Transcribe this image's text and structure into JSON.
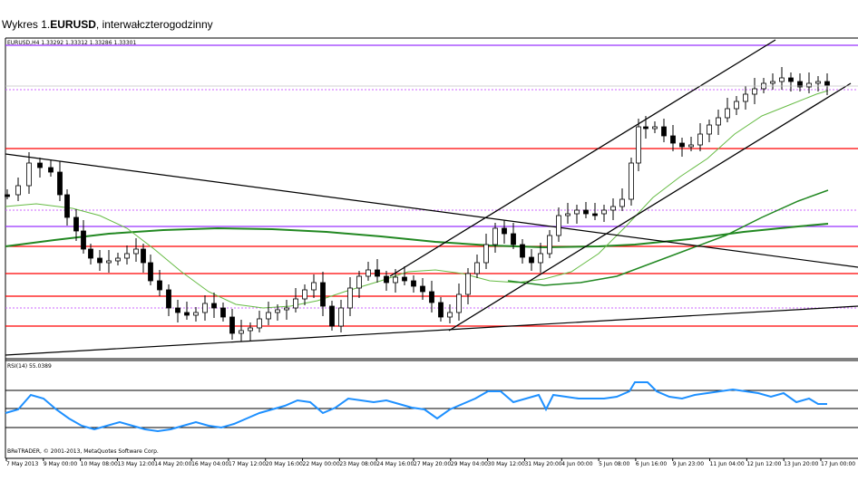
{
  "header": {
    "prefix": "Wykres 1.",
    "symbol": "EURUSD",
    "suffix": ", interwałczterogodzinny"
  },
  "price_panel": {
    "info": "EURUSD,H4  1.33292 1.33312 1.33286 1.33301"
  },
  "rsi_panel": {
    "label": "RSI(14) 55.0389"
  },
  "copyright": "BReTRADER, © 2001-2013, MetaQuotes Software Corp.",
  "colors": {
    "candle": "#000000",
    "support_resistance": "#ff0000",
    "level_purple": "#9933ff",
    "ma_thin": "#66bb44",
    "ma_thick": "#228822",
    "rsi_line": "#1e90ff",
    "trendline": "#000000"
  },
  "chart_data": {
    "type": "candlestick",
    "symbol": "EURUSD",
    "timeframe": "H4",
    "x_tick_labels": [
      "7 May 2013",
      "9 May 00:00",
      "10 May 08:00",
      "13 May 12:00",
      "14 May 20:00",
      "16 May 04:00",
      "17 May 12:00",
      "20 May 16:00",
      "22 May 00:00",
      "23 May 08:00",
      "24 May 16:00",
      "27 May 20:00",
      "29 May 04:00",
      "30 May 12:00",
      "31 May 20:00",
      "4 Jun 00:00",
      "5 Jun 08:00",
      "6 Jun 16:00",
      "9 Jun 23:00",
      "11 Jun 04:00",
      "12 Jun 12:00",
      "13 Jun 20:00",
      "17 Jun 00:00"
    ],
    "last_ohlc": {
      "open": 1.33292,
      "high": 1.33312,
      "low": 1.33286,
      "close": 1.33301
    },
    "rsi_period": 14,
    "rsi_last": 55.0389,
    "rsi_levels": [
      70,
      50,
      30
    ],
    "overlays": [
      "short moving average (thin green)",
      "long moving average (thick green)",
      "horizontal support/resistance levels (red)",
      "purple horizontal levels",
      "descending trendline",
      "ascending channel",
      "long-term ascending trendline"
    ]
  }
}
